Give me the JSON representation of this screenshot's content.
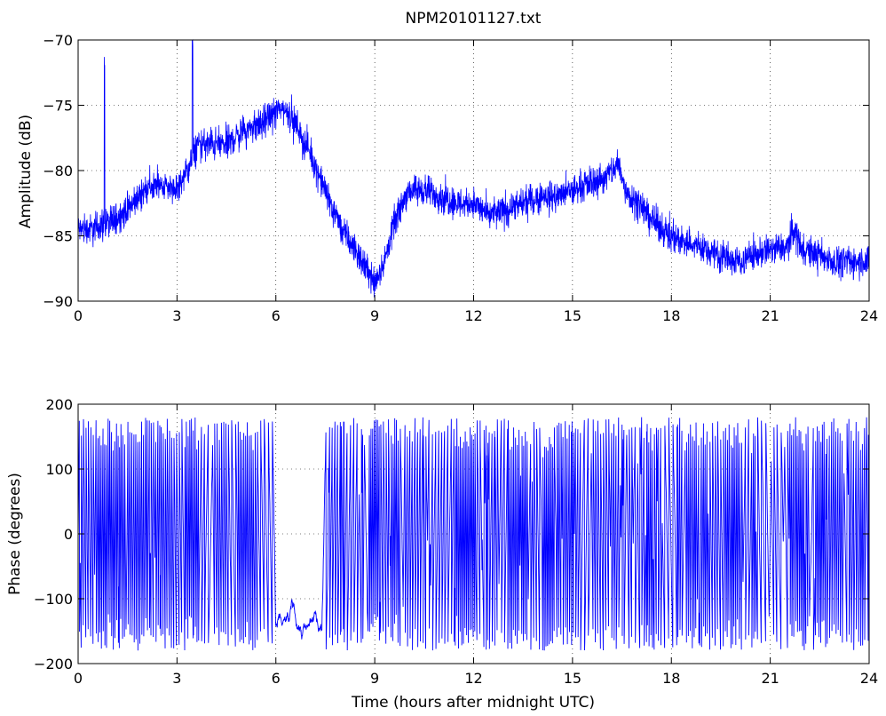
{
  "chart_data": [
    {
      "type": "line",
      "title": "NPM20101127.txt",
      "xlabel": "",
      "ylabel": "Amplitude (dB)",
      "xlim": [
        0,
        24
      ],
      "ylim": [
        -90,
        -70
      ],
      "xticks": [
        0,
        3,
        6,
        9,
        12,
        15,
        18,
        21,
        24
      ],
      "yticks": [
        -90,
        -85,
        -80,
        -75,
        -70
      ],
      "grid": "dotted",
      "series": [
        {
          "color": "#0000ff",
          "x": [
            0,
            0.5,
            0.8,
            1.0,
            1.5,
            2.0,
            2.5,
            3.0,
            3.3,
            3.5,
            3.6,
            4.0,
            4.5,
            5.0,
            5.5,
            6.0,
            6.2,
            6.5,
            7.0,
            7.5,
            8.0,
            8.5,
            9.0,
            9.3,
            9.6,
            10.0,
            10.5,
            11.0,
            11.5,
            12.0,
            12.5,
            13.0,
            13.5,
            14.0,
            14.5,
            15.0,
            15.5,
            16.0,
            16.4,
            16.6,
            17.0,
            17.5,
            18.0,
            18.5,
            19.0,
            19.5,
            20.0,
            20.5,
            21.0,
            21.5,
            21.7,
            22.0,
            22.5,
            23.0,
            23.5,
            24.0
          ],
          "y": [
            -84.5,
            -84.5,
            -84.0,
            -84.0,
            -83.0,
            -81.5,
            -81.0,
            -81.5,
            -80.0,
            -79.0,
            -78.0,
            -78.0,
            -78.0,
            -77.0,
            -76.5,
            -75.5,
            -75.2,
            -76.0,
            -78.5,
            -81.5,
            -84.5,
            -86.5,
            -88.5,
            -87.0,
            -84.0,
            -81.5,
            -81.5,
            -82.0,
            -82.5,
            -82.5,
            -83.5,
            -83.0,
            -82.5,
            -82.0,
            -82.0,
            -81.5,
            -81.0,
            -80.5,
            -79.5,
            -81.5,
            -82.5,
            -84.0,
            -85.0,
            -85.5,
            -86.0,
            -86.5,
            -87.0,
            -86.5,
            -86.0,
            -86.0,
            -84.5,
            -86.0,
            -86.5,
            -87.0,
            -87.0,
            -87.0
          ],
          "noise": 2.2,
          "spikes": [
            [
              0.8,
              -72.5
            ],
            [
              3.47,
              -70.6
            ]
          ]
        }
      ]
    },
    {
      "type": "line",
      "title": "",
      "xlabel": "Time (hours after midnight UTC)",
      "ylabel": "Phase (degrees)",
      "xlim": [
        0,
        24
      ],
      "ylim": [
        -200,
        200
      ],
      "xticks": [
        0,
        3,
        6,
        9,
        12,
        15,
        18,
        21,
        24
      ],
      "yticks": [
        -200,
        -100,
        0,
        100,
        200
      ],
      "grid": "dotted",
      "series": [
        {
          "color": "#0000ff",
          "wrapped": true,
          "wrap": [
            -180,
            180
          ],
          "drift_rate": 820,
          "calm_interval": [
            6.0,
            7.4
          ],
          "calm_rate": 120
        }
      ]
    }
  ]
}
